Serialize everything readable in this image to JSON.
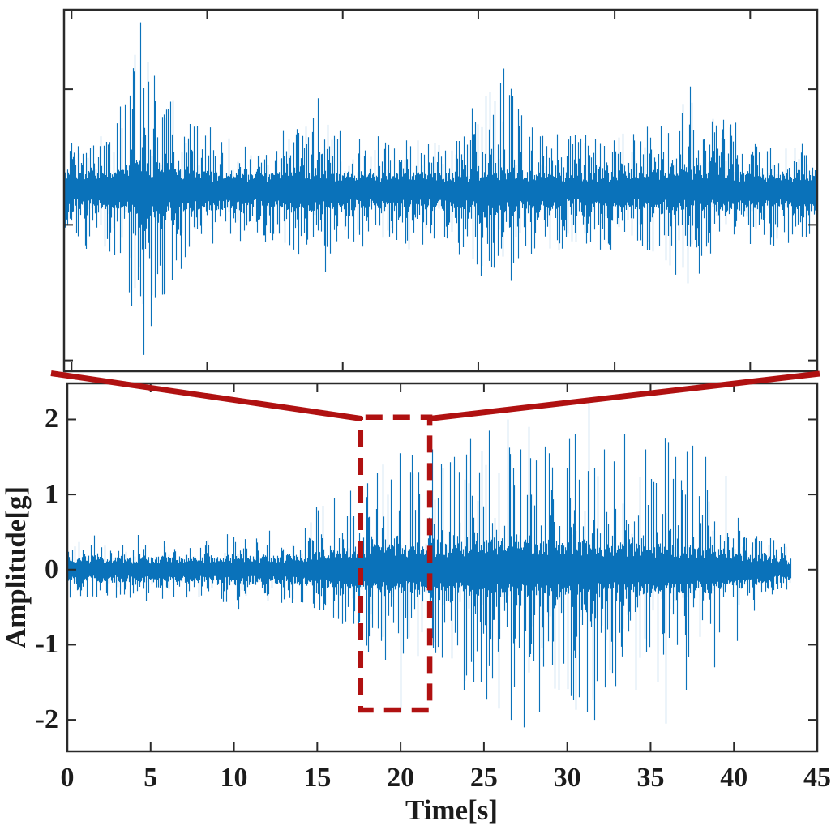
{
  "figure": {
    "background": "#ffffff",
    "signal_color": "#0a72ba",
    "annotation_color": "#b01111",
    "axis_color": "#2a2a2a",
    "text_color": "#1c1c1c"
  },
  "chart_data": [
    {
      "type": "line",
      "name": "zoomed_waveform_detail",
      "description": "Top panel: zoom-in of the dashed-box region of the lower panel; axes unlabeled",
      "x_range_s": [
        17.6,
        21.75
      ],
      "ylim": [
        -2,
        2
      ],
      "unlabeled_tick_positions_frac_x": [
        0.01,
        0.19,
        0.37,
        0.55,
        0.731,
        0.911
      ],
      "unlabeled_tick_positions_frac_y": [
        0.22,
        0.595,
        0.97
      ],
      "envelope_t_core_peak": [
        [
          17.6,
          0.17,
          0.6
        ],
        [
          17.85,
          0.18,
          0.7
        ],
        [
          17.95,
          0.24,
          1.2
        ],
        [
          18.02,
          0.3,
          1.9
        ],
        [
          18.12,
          0.26,
          1.3
        ],
        [
          18.3,
          0.2,
          0.8
        ],
        [
          18.6,
          0.17,
          0.6
        ],
        [
          18.85,
          0.18,
          0.7
        ],
        [
          19.0,
          0.21,
          1.0
        ],
        [
          19.15,
          0.19,
          0.8
        ],
        [
          19.4,
          0.17,
          0.62
        ],
        [
          19.75,
          0.18,
          0.68
        ],
        [
          20.0,
          0.22,
          1.3
        ],
        [
          20.15,
          0.2,
          0.9
        ],
        [
          20.4,
          0.18,
          0.65
        ],
        [
          20.75,
          0.18,
          0.7
        ],
        [
          21.05,
          0.21,
          1.15
        ],
        [
          21.2,
          0.19,
          0.85
        ],
        [
          21.45,
          0.18,
          0.68
        ],
        [
          21.75,
          0.17,
          0.6
        ]
      ],
      "peak_events_t_amp": [
        [
          18.02,
          1.86
        ],
        [
          18.04,
          -1.82
        ],
        [
          17.99,
          1.5
        ],
        [
          18.06,
          1.42
        ],
        [
          18.08,
          -1.5
        ],
        [
          17.96,
          1.05
        ],
        [
          18.15,
          -1.15
        ],
        [
          18.2,
          1.0
        ],
        [
          19.0,
          1.02
        ],
        [
          19.04,
          -0.9
        ],
        [
          18.97,
          0.8
        ],
        [
          20.02,
          1.35
        ],
        [
          20.06,
          -1.0
        ],
        [
          20.1,
          0.9
        ],
        [
          21.05,
          1.15
        ],
        [
          21.1,
          -0.92
        ],
        [
          19.5,
          -0.65
        ],
        [
          19.9,
          0.7
        ],
        [
          20.6,
          -0.6
        ],
        [
          21.3,
          0.75
        ],
        [
          17.8,
          0.6
        ],
        [
          18.75,
          -0.55
        ]
      ]
    },
    {
      "type": "line",
      "name": "full_vibration_signal",
      "xlabel": "Time[s]",
      "ylabel": "Amplitude[g]",
      "xlim": [
        0,
        45
      ],
      "ylim": [
        -2.42,
        2.48
      ],
      "xticks": [
        0,
        5,
        10,
        15,
        20,
        25,
        30,
        35,
        40,
        45
      ],
      "xtick_labels": [
        "0",
        "5",
        "10",
        "15",
        "20",
        "25",
        "30",
        "35",
        "40",
        "45"
      ],
      "yticks": [
        2,
        1,
        0,
        -1,
        -2
      ],
      "ytick_labels": [
        "2",
        "1",
        "0",
        "-1",
        "-2"
      ],
      "signal_start_s": 0,
      "signal_end_s": 43.4,
      "envelope_t_core_peak": [
        [
          0,
          0.15,
          0.42
        ],
        [
          1,
          0.16,
          0.5
        ],
        [
          3,
          0.15,
          0.45
        ],
        [
          5,
          0.16,
          0.48
        ],
        [
          7,
          0.16,
          0.45
        ],
        [
          9,
          0.17,
          0.5
        ],
        [
          11,
          0.17,
          0.52
        ],
        [
          13,
          0.18,
          0.55
        ],
        [
          14,
          0.2,
          0.65
        ],
        [
          15,
          0.22,
          0.9
        ],
        [
          16,
          0.25,
          1.0
        ],
        [
          17,
          0.27,
          1.1
        ],
        [
          18,
          0.28,
          1.25
        ],
        [
          19,
          0.3,
          1.5
        ],
        [
          20,
          0.3,
          1.6
        ],
        [
          21,
          0.3,
          1.5
        ],
        [
          22,
          0.32,
          1.55
        ],
        [
          23,
          0.33,
          1.65
        ],
        [
          24,
          0.34,
          1.7
        ],
        [
          25,
          0.35,
          1.8
        ],
        [
          26,
          0.35,
          1.95
        ],
        [
          27,
          0.36,
          1.9
        ],
        [
          28,
          0.36,
          1.85
        ],
        [
          29,
          0.35,
          1.7
        ],
        [
          30,
          0.35,
          1.8
        ],
        [
          31,
          0.35,
          2.1
        ],
        [
          32,
          0.34,
          1.75
        ],
        [
          33,
          0.33,
          1.75
        ],
        [
          34,
          0.33,
          1.65
        ],
        [
          35,
          0.32,
          1.6
        ],
        [
          36,
          0.32,
          1.9
        ],
        [
          37,
          0.3,
          1.65
        ],
        [
          38,
          0.29,
          1.5
        ],
        [
          39,
          0.27,
          1.25
        ],
        [
          40,
          0.24,
          0.95
        ],
        [
          41,
          0.2,
          0.65
        ],
        [
          42,
          0.17,
          0.45
        ],
        [
          43,
          0.14,
          0.35
        ],
        [
          43.4,
          0.12,
          0.3
        ]
      ],
      "peak_events_t_amp": [
        [
          16.0,
          0.95
        ],
        [
          15.3,
          0.85
        ],
        [
          17.0,
          1.05
        ],
        [
          18.0,
          1.15
        ],
        [
          18.05,
          -1.1
        ],
        [
          18.9,
          1.4
        ],
        [
          19.05,
          -1.2
        ],
        [
          19.4,
          1.2
        ],
        [
          19.95,
          1.55
        ],
        [
          20.0,
          -1.9
        ],
        [
          20.6,
          1.3
        ],
        [
          21.05,
          1.3
        ],
        [
          21.0,
          -1.15
        ],
        [
          21.9,
          1.6
        ],
        [
          22.5,
          1.35
        ],
        [
          23.2,
          1.5
        ],
        [
          23.8,
          -1.6
        ],
        [
          24.2,
          1.75
        ],
        [
          24.8,
          -1.5
        ],
        [
          25.3,
          1.85
        ],
        [
          25.9,
          -1.85
        ],
        [
          26.4,
          2.0
        ],
        [
          26.6,
          -2.0
        ],
        [
          27.2,
          1.6
        ],
        [
          27.4,
          -2.1
        ],
        [
          27.7,
          1.9
        ],
        [
          28.3,
          -1.9
        ],
        [
          28.9,
          1.55
        ],
        [
          29.5,
          -1.6
        ],
        [
          30.1,
          1.75
        ],
        [
          30.7,
          -1.7
        ],
        [
          31.3,
          2.25
        ],
        [
          31.6,
          -2.0
        ],
        [
          32.2,
          1.6
        ],
        [
          32.9,
          -1.55
        ],
        [
          33.4,
          1.8
        ],
        [
          34.1,
          -1.6
        ],
        [
          34.7,
          1.6
        ],
        [
          35.4,
          -1.5
        ],
        [
          35.9,
          -2.05
        ],
        [
          36.5,
          1.5
        ],
        [
          37.1,
          -1.6
        ],
        [
          37.5,
          1.65
        ],
        [
          38.3,
          1.5
        ],
        [
          38.8,
          -1.3
        ],
        [
          39.5,
          1.25
        ],
        [
          40.2,
          -0.95
        ]
      ],
      "zoom_box": {
        "t_start": 17.6,
        "t_end": 21.75,
        "amp_min": -1.87,
        "amp_max": 2.03,
        "style": "dashed",
        "color": "#b01111"
      }
    }
  ],
  "annotation": {
    "connector_lines": "from bottom corners of top panel to top corners of dashed zoom box",
    "color": "#b01111"
  }
}
